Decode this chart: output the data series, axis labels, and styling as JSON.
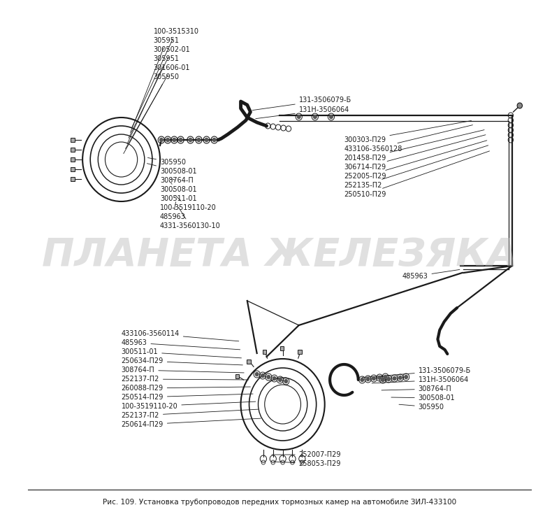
{
  "title": "Рис. 109. Установка трубопроводов передних тормозных камер на автомобиле ЗИЛ-433100",
  "watermark": "ПЛАНЕТА ЖЕЛЕЗЯКА",
  "bg_color": "#ffffff",
  "top_labels_left": [
    "100-3515310",
    "305951",
    "300502-01",
    "305951",
    "301606-01",
    "305950"
  ],
  "top_labels_right": [
    "131-3506079-Б",
    "131Н-3506064"
  ],
  "mid_right_labels": [
    "300303-П29",
    "433106-3560128",
    "201458-П29",
    "306714-П29",
    "252005-П29",
    "252135-П2",
    "250510-П29"
  ],
  "mid_left_labels": [
    "305950",
    "300508-01",
    "308764-П",
    "300508-01",
    "300511-01",
    "100-3519110-20",
    "485963",
    "4331-3560130-10"
  ],
  "mid_label_485963": "485963",
  "bottom_left_labels": [
    "433106-3560114",
    "485963",
    "300511-01",
    "250634-П29",
    "308764-П",
    "252137-П2",
    "260088-П29",
    "250514-П29",
    "100-3519110-20",
    "252137-П2",
    "250614-П29"
  ],
  "bottom_right_labels": [
    "131-3506079-Б",
    "131Н-3506064",
    "308764-П",
    "300508-01",
    "305950"
  ],
  "bottom_bottom_labels": [
    "252007-П29",
    "258053-П29"
  ]
}
